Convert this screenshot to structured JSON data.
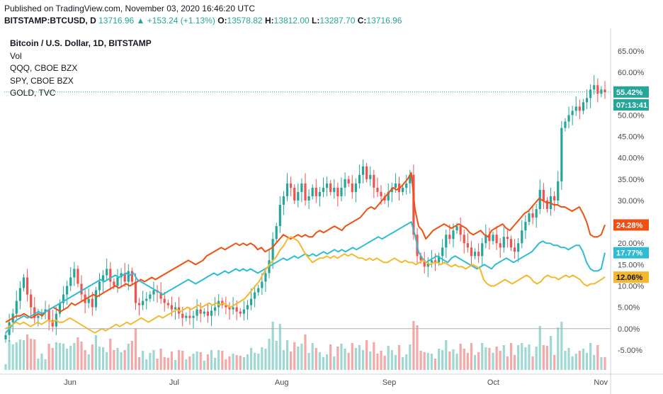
{
  "header": {
    "published": "Published on TradingView.com, November 03, 2020 16:46:20 UTC",
    "symbol": "BITSTAMP:BTCUSD, D",
    "last": "13716.96",
    "change": "+153.24 (+1.13%)",
    "o_label": "O:",
    "o": "13578.82",
    "h_label": "H:",
    "h": "13812.00",
    "l_label": "L:",
    "l": "13287.70",
    "c_label": "C:",
    "c": "13716.96"
  },
  "legend": {
    "title": "Bitcoin / U.S. Dollar, 1D, BITSTAMP",
    "items": [
      "Vol",
      "QQQ, CBOE BZX",
      "SPY, CBOE BZX",
      "GOLD, TVC"
    ]
  },
  "colors": {
    "up": "#26a69a",
    "down": "#ef5350",
    "qqq": "#f04f13",
    "spy": "#2fbcd0",
    "gold": "#f5b72e",
    "vol_up": "#9fd8d3",
    "vol_down": "#f4a8a8"
  },
  "tags": {
    "price": "55.42%",
    "countdown": "07:13:41",
    "qqq": "24.28%",
    "spy": "17.77%",
    "gold": "12.06%"
  },
  "chart_data": {
    "type": "line",
    "title": "Bitcoin / U.S. Dollar, 1D, BITSTAMP",
    "y_unit": "% change",
    "ylim": [
      -9,
      67
    ],
    "yticks": [
      65,
      60,
      55,
      50,
      45,
      40,
      35,
      30,
      25,
      20,
      15,
      10,
      5,
      0,
      -5
    ],
    "ytick_labels": [
      "65.00%",
      "60.00%",
      "55.00%",
      "50.00%",
      "45.00%",
      "40.00%",
      "35.00%",
      "30.00%",
      "25.00%",
      "20.00%",
      "15.00%",
      "10.00%",
      "5.00%",
      "0.00%",
      "-5.00%"
    ],
    "x_range": [
      "2020-05-13",
      "2020-11-03"
    ],
    "xticks": [
      {
        "label": "Jun",
        "date": "2020-06-01"
      },
      {
        "label": "Jul",
        "date": "2020-07-01"
      },
      {
        "label": "Aug",
        "date": "2020-08-01"
      },
      {
        "label": "Sep",
        "date": "2020-09-01"
      },
      {
        "label": "Oct",
        "date": "2020-10-01"
      },
      {
        "label": "Nov",
        "date": "2020-11-01"
      }
    ],
    "grid": false,
    "btc_close": [
      -1.5,
      1.5,
      3.5,
      6.5,
      9.5,
      12,
      8,
      5,
      2.5,
      3,
      3.8,
      4.5,
      2,
      0.5,
      3.5,
      6,
      8,
      10,
      12,
      14,
      10.5,
      8,
      6,
      7,
      5,
      9,
      11,
      12.5,
      14,
      11,
      10,
      12,
      13,
      11,
      13.5,
      11,
      6,
      5.5,
      6.5,
      7,
      8,
      9,
      8.5,
      7,
      6,
      5.5,
      4.5,
      5,
      3.5,
      2.5,
      3,
      2.5,
      3,
      4.5,
      3.5,
      4,
      3,
      4.2,
      5,
      6.5,
      5.5,
      5,
      4.5,
      5,
      4,
      3.5,
      4.5,
      5.5,
      7,
      8.5,
      9.5,
      11,
      13,
      16,
      21,
      24,
      29,
      31,
      34,
      33,
      30,
      32,
      34,
      30,
      31,
      33,
      31,
      32,
      33,
      34,
      32,
      33,
      31,
      33,
      35,
      34,
      32,
      34,
      36,
      38,
      35,
      36,
      33,
      32,
      31,
      30,
      32,
      33,
      34,
      32,
      33,
      34,
      36,
      22,
      17,
      16,
      14.5,
      15.5,
      16,
      15.5,
      17,
      19,
      22,
      21,
      23,
      24,
      22,
      20,
      19,
      17,
      18,
      17,
      20,
      22,
      20.5,
      22,
      20,
      19,
      21.5,
      21,
      19,
      18,
      20,
      23,
      25,
      27,
      26,
      28,
      32.5,
      30,
      28,
      31,
      30,
      34.5,
      47,
      48.5,
      50,
      51,
      52,
      51,
      53,
      54,
      56,
      57,
      55,
      56,
      55.4
    ],
    "series": [
      {
        "name": "QQQ, CBOE BZX",
        "last": 24.28,
        "values": [
          1.5,
          2,
          2.5,
          3,
          3,
          3.5,
          3,
          2.5,
          3,
          3.5,
          3,
          4,
          4.5,
          5,
          4.5,
          4,
          4.5,
          5,
          6,
          5.5,
          6,
          6.5,
          7,
          7.5,
          8,
          7.5,
          8,
          8.5,
          9,
          9.5,
          10,
          9.5,
          10,
          10.5,
          10,
          10.5,
          11,
          11.5,
          11,
          11.5,
          12,
          11.5,
          12,
          12.5,
          13,
          13.5,
          14,
          14.5,
          15,
          15.5,
          16,
          15.5,
          15,
          15.5,
          16,
          17,
          17.5,
          18,
          18.5,
          19,
          18.5,
          19,
          19.5,
          20,
          19.5,
          20,
          19.5,
          20,
          19.5,
          18.5,
          19,
          18,
          18.5,
          19,
          20,
          21,
          22,
          21.5,
          21,
          21.5,
          22,
          21.5,
          22,
          21.5,
          21.5,
          22.5,
          23,
          22.5,
          23,
          23.5,
          24,
          23.5,
          23,
          24,
          24.5,
          25,
          25.5,
          26,
          27,
          28,
          28.5,
          28,
          29,
          30,
          31,
          32,
          33,
          32.5,
          33,
          34,
          35,
          36.5,
          28,
          24,
          23,
          21,
          22,
          23,
          23.5,
          24,
          24.5,
          24,
          23.5,
          24,
          24.5,
          24,
          23.5,
          22.5,
          22,
          22.5,
          23,
          22,
          21.5,
          23,
          23.5,
          24,
          24.5,
          23.5,
          23,
          24,
          25,
          26,
          27,
          27.5,
          28.5,
          29.5,
          30.5,
          30,
          29.5,
          29.5,
          29,
          29,
          28.5,
          28.5,
          28,
          27.5,
          28,
          28.5,
          27,
          25,
          22,
          21.5,
          21.5,
          22,
          24.3
        ]
      },
      {
        "name": "SPY, CBOE BZX",
        "last": 17.77,
        "values": [
          -1,
          0,
          1,
          2,
          2.5,
          3,
          2.5,
          3,
          3.5,
          4,
          3.5,
          4,
          4.5,
          5,
          5.5,
          6,
          6.5,
          7,
          7.5,
          8,
          8.5,
          9,
          9.5,
          10,
          10.5,
          11,
          11.5,
          11,
          11.5,
          12,
          12.5,
          12,
          12.5,
          13,
          12.5,
          13,
          11.5,
          11,
          10.5,
          10,
          9.5,
          9,
          8.5,
          8,
          8.5,
          9,
          9.5,
          10,
          10.5,
          11,
          11.5,
          11,
          10.5,
          11,
          11.5,
          12,
          12.5,
          13,
          12.5,
          13,
          13.5,
          13,
          13.5,
          14,
          13.5,
          14,
          13.5,
          14,
          13.5,
          13,
          13.5,
          14,
          14.5,
          15,
          15.5,
          16,
          16.5,
          16,
          16.5,
          17,
          16.5,
          17,
          17.5,
          17,
          17.5,
          17,
          17.5,
          18,
          17.5,
          18,
          18.5,
          18,
          18.5,
          18,
          18.5,
          19,
          18.5,
          19,
          19.5,
          20,
          20.5,
          21,
          21.5,
          21,
          21.5,
          22,
          22.5,
          23,
          23.5,
          24,
          24.5,
          25,
          22,
          18,
          16.5,
          15.5,
          16,
          16.5,
          17,
          16.5,
          16,
          15.5,
          16.5,
          17,
          16.5,
          16,
          15.5,
          15,
          14.5,
          14,
          14.5,
          15,
          14.5,
          14,
          15,
          15.5,
          16,
          16.5,
          16,
          15.5,
          16,
          16.5,
          17,
          17.5,
          18,
          19,
          20,
          20.5,
          20,
          20,
          19.5,
          19.5,
          19,
          19,
          18.5,
          19,
          19.5,
          19.5,
          18,
          15.5,
          14,
          13.5,
          13.5,
          14,
          17.8
        ]
      },
      {
        "name": "GOLD, TVC",
        "last": 12.06,
        "values": [
          0,
          0.5,
          1,
          1.5,
          1,
          1.5,
          1,
          0.5,
          1,
          1.5,
          1,
          1.5,
          2,
          1.5,
          2,
          1.5,
          1.5,
          2,
          2.5,
          2,
          1.5,
          1,
          0.5,
          0,
          -0.5,
          -1,
          -0.5,
          0,
          -0.5,
          0,
          0.5,
          1,
          0.5,
          1,
          1.5,
          1,
          1.5,
          2,
          2.5,
          2,
          1.5,
          2,
          2.5,
          3,
          2.5,
          3,
          3.5,
          4,
          4.5,
          4,
          4.5,
          5,
          4.5,
          5,
          5.5,
          5,
          5.5,
          6,
          5.5,
          6,
          5.5,
          6,
          5.5,
          5,
          5.5,
          6,
          6.5,
          7,
          8,
          9,
          10,
          11,
          12.5,
          14,
          15,
          16,
          17,
          18.5,
          19.5,
          21,
          21.5,
          21,
          20.5,
          19,
          17.5,
          16.5,
          15.5,
          16,
          16.5,
          16.5,
          17,
          16.5,
          17,
          16.5,
          17,
          17.5,
          17,
          17.5,
          17,
          16.5,
          16.5,
          16,
          16.5,
          16,
          16.5,
          16,
          15.5,
          15.5,
          16,
          16.5,
          16,
          15.5,
          16,
          15.5,
          15.5,
          15,
          15.5,
          16,
          15.5,
          15,
          15.5,
          15.5,
          15,
          15.5,
          15,
          14.5,
          15,
          14.5,
          14.5,
          14,
          14.5,
          15,
          14.5,
          14,
          11.5,
          10.5,
          10,
          10,
          10.5,
          11,
          11.5,
          11,
          10.5,
          11,
          11.5,
          12,
          12.5,
          12,
          11,
          10.5,
          11,
          12,
          12.5,
          12,
          12,
          11.5,
          12,
          12.5,
          12,
          12.5,
          12,
          11.5,
          10.5,
          10,
          10.5,
          10.5,
          11,
          11.5,
          12.1
        ]
      }
    ]
  }
}
